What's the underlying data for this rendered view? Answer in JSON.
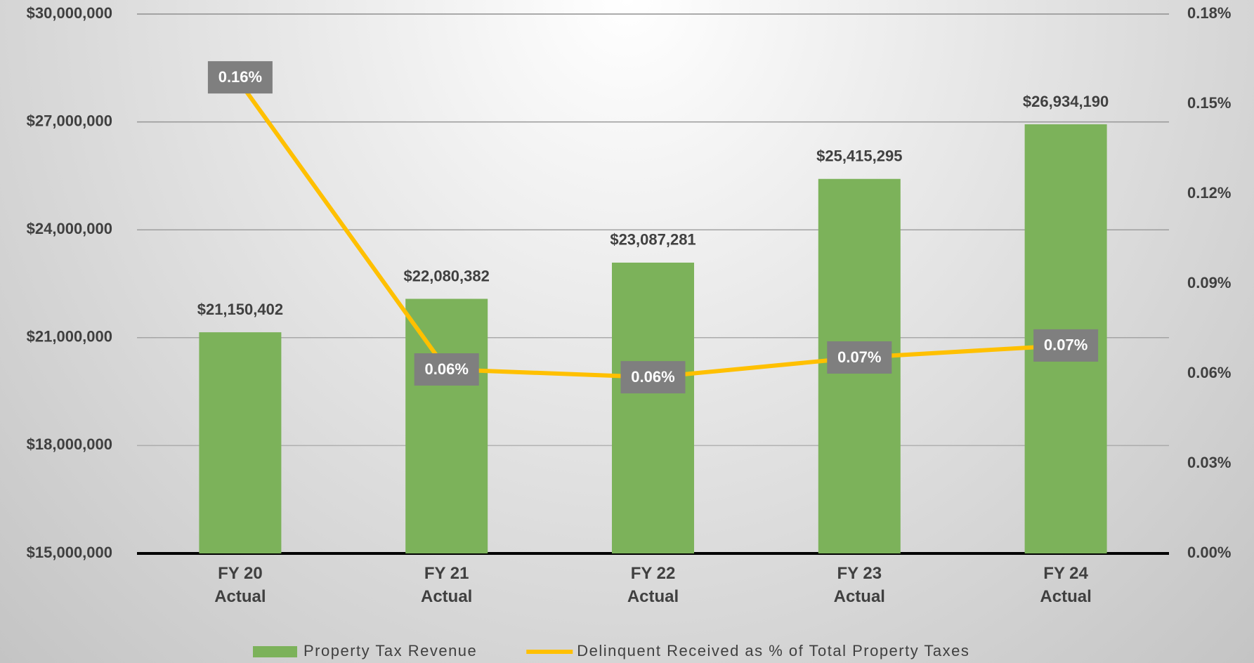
{
  "chart_data": {
    "type": "bar-line",
    "categories": [
      "FY 20 Actual",
      "FY 21 Actual",
      "FY 22 Actual",
      "FY 23 Actual",
      "FY 24 Actual"
    ],
    "series": [
      {
        "name": "Property Tax Revenue",
        "type": "bar",
        "color": "#7cb25a",
        "values": [
          21150402,
          22080382,
          23087281,
          25415295,
          26934190
        ],
        "value_labels": [
          "$21,150,402",
          "$22,080,382",
          "$23,087,281",
          "$25,415,295",
          "$26,934,190"
        ]
      },
      {
        "name": "Delinquent Received as % of Total Property Taxes",
        "type": "line",
        "axis": "y2",
        "color": "#ffc000",
        "values": [
          0.157,
          0.0614,
          0.0588,
          0.0654,
          0.0694
        ],
        "value_labels": [
          "0.16%",
          "0.06%",
          "0.06%",
          "0.07%",
          "0.07%"
        ]
      }
    ],
    "ylim": [
      15000000,
      30000000
    ],
    "yticks": [
      {
        "value": 15000000,
        "label": "$15,000,000"
      },
      {
        "value": 18000000,
        "label": "$18,000,000"
      },
      {
        "value": 21000000,
        "label": "$21,000,000"
      },
      {
        "value": 24000000,
        "label": "$24,000,000"
      },
      {
        "value": 27000000,
        "label": "$27,000,000"
      },
      {
        "value": 30000000,
        "label": "$30,000,000"
      }
    ],
    "y2lim": [
      0,
      0.18
    ],
    "y2ticks": [
      {
        "value": 0,
        "label": "0.00%"
      },
      {
        "value": 0.03,
        "label": "0.03%"
      },
      {
        "value": 0.06,
        "label": "0.06%"
      },
      {
        "value": 0.09,
        "label": "0.09%"
      },
      {
        "value": 0.12,
        "label": "0.12%"
      },
      {
        "value": 0.15,
        "label": "0.15%"
      },
      {
        "value": 0.18,
        "label": "0.18%"
      }
    ],
    "grid": true,
    "legend": "bottom"
  }
}
